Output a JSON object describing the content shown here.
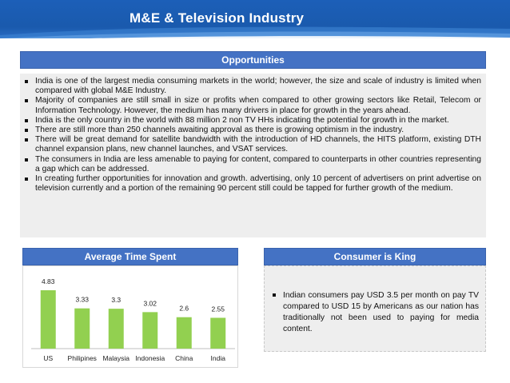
{
  "header": {
    "title": "M&E & Television Industry"
  },
  "opportunities": {
    "heading": "Opportunities",
    "bullets": [
      "India is one of the largest media consuming markets in the world; however, the size and scale of industry is limited when compared with global M&E Industry.",
      "Majority of companies are still small in size or profits when compared to other growing sectors like Retail, Telecom or Information Technology. However, the medium has many drivers in place for growth in the years ahead.",
      "India is the only country in the world with 88 million 2 non TV HHs indicating the potential for growth in the market.",
      "There are still more than 250 channels awaiting approval as there is growing optimism in the industry.",
      "There will be great demand for satellite bandwidth with the introduction of HD channels, the HITS platform, existing DTH channel expansion plans, new channel launches, and VSAT services.",
      "The consumers in India are less amenable to paying for content, compared to counterparts in other countries representing a gap which can be addressed.",
      "In creating further opportunities for innovation and growth. advertising, only 10 percent of advertisers on print advertise on television currently and a portion of the remaining 90 percent still could be tapped for further growth of the medium."
    ]
  },
  "time_spent": {
    "heading": "Average Time Spent"
  },
  "consumer": {
    "heading": "Consumer is King",
    "bullets": [
      "Indian consumers pay USD 3.5 per month on pay TV compared to USD 15 by Americans as our nation has traditionally not been used to paying for media content."
    ]
  },
  "chart_data": {
    "type": "bar",
    "categories": [
      "US",
      "Philipines",
      "Malaysia",
      "Indonesia",
      "China",
      "India"
    ],
    "values": [
      4.83,
      3.33,
      3.3,
      3.02,
      2.6,
      2.55
    ],
    "value_labels": [
      "4.83",
      "3.33",
      "3.3",
      "3.02",
      "2.6",
      "2.55"
    ],
    "title": "",
    "xlabel": "",
    "ylabel": "",
    "ylim": [
      0,
      5
    ],
    "grid": false,
    "legend": "none",
    "bar_color": "#92d050"
  },
  "colors": {
    "header_blue": "#1c5fb8",
    "section_blue": "#4472c4",
    "panel_gray": "#eeeeee"
  }
}
